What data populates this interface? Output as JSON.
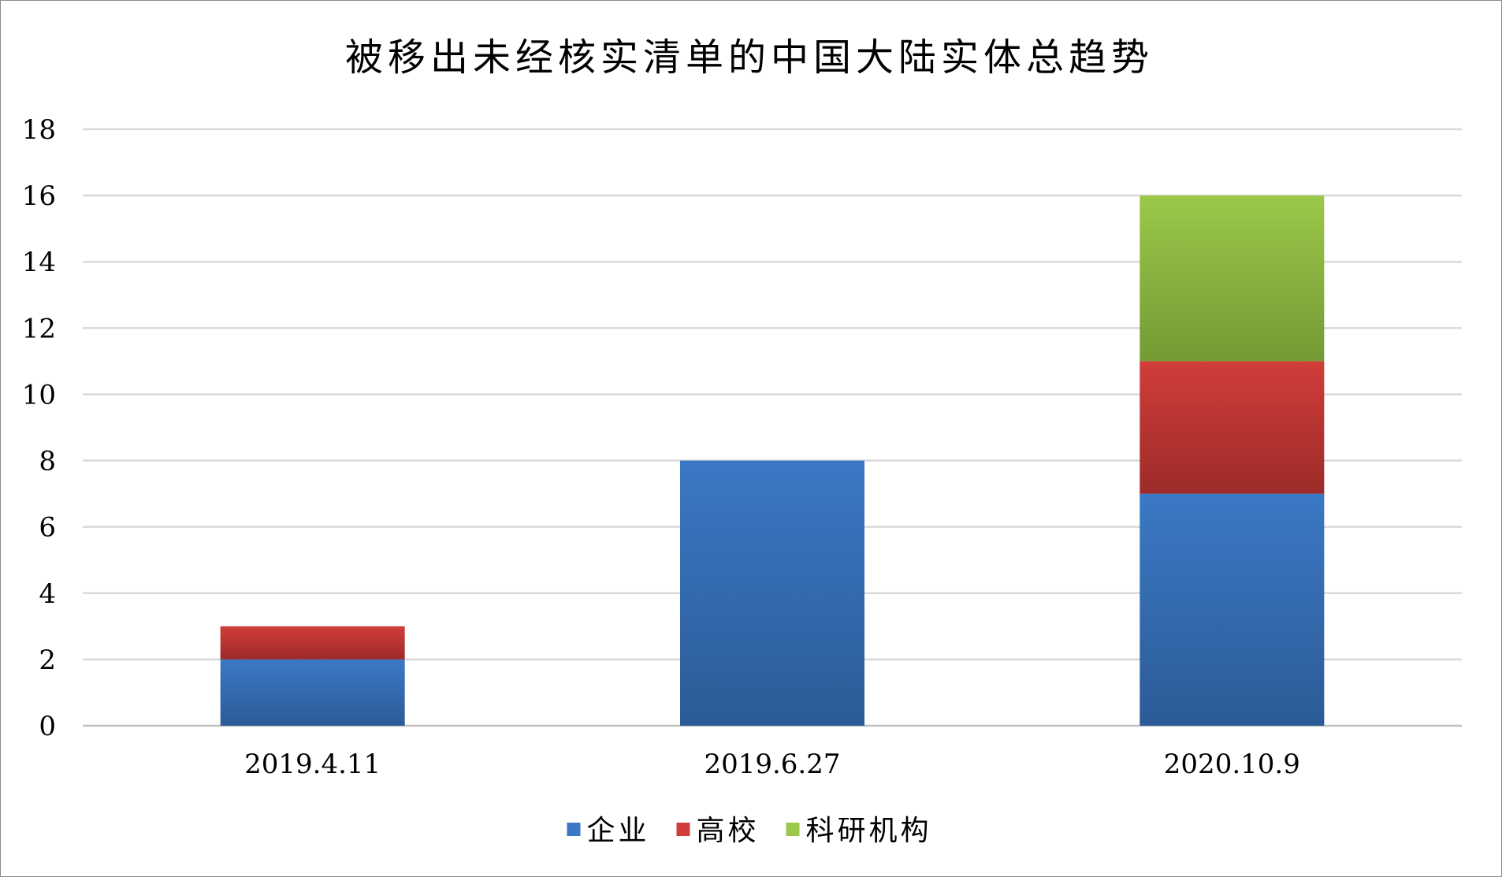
{
  "chart_data": {
    "type": "bar",
    "stacked": true,
    "title": "被移出未经核实清单的中国大陆实体总趋势",
    "xlabel": "",
    "ylabel": "",
    "categories": [
      "2019.4.11",
      "2019.6.27",
      "2020.10.9"
    ],
    "series": [
      {
        "name": "企业",
        "values": [
          2,
          8,
          7
        ],
        "color": "#3b78c4",
        "color_dark": "#2c5b97"
      },
      {
        "name": "高校",
        "values": [
          1,
          0,
          4
        ],
        "color": "#d13d3a",
        "color_dark": "#9c2b29"
      },
      {
        "name": "科研机构",
        "values": [
          0,
          0,
          5
        ],
        "color": "#9bc84a",
        "color_dark": "#759a35"
      }
    ],
    "ylim": [
      0,
      18
    ],
    "yticks": [
      "0",
      "2",
      "4",
      "6",
      "8",
      "10",
      "12",
      "14",
      "16",
      "18"
    ],
    "grid": true,
    "legend_position": "bottom",
    "gridline_color": "#d9d9d9",
    "axis_line_color": "#bfbfbf"
  }
}
